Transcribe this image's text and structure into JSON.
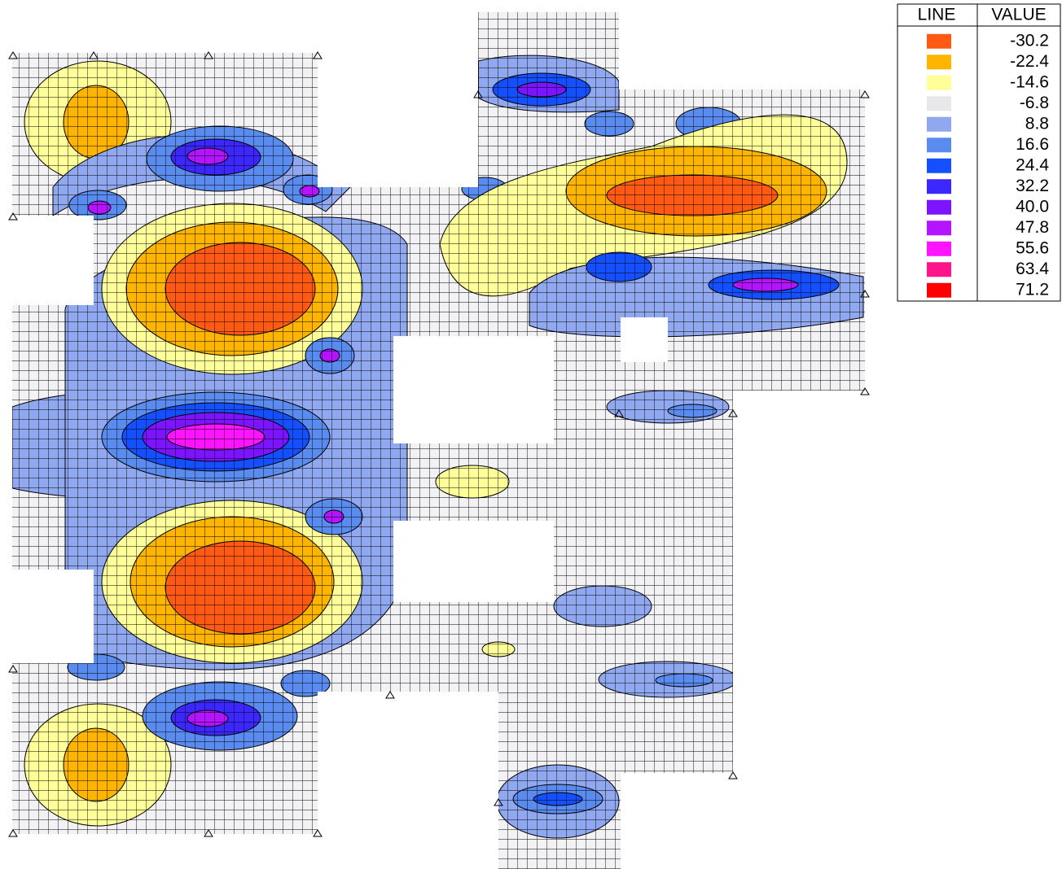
{
  "legend": {
    "header": {
      "line": "LINE",
      "value": "VALUE"
    },
    "rows": [
      {
        "color": "#ff5a14",
        "value": "-30.2"
      },
      {
        "color": "#ffb400",
        "value": "-22.4"
      },
      {
        "color": "#ffff99",
        "value": "-14.6"
      },
      {
        "color": "#e8e8ea",
        "value": "-6.8"
      },
      {
        "color": "#8fa8ef",
        "value": "8.8"
      },
      {
        "color": "#5a8cf0",
        "value": "16.6"
      },
      {
        "color": "#1450ff",
        "value": "24.4"
      },
      {
        "color": "#3c28ff",
        "value": "32.2"
      },
      {
        "color": "#7d14ff",
        "value": "40.0"
      },
      {
        "color": "#b414ff",
        "value": "47.8"
      },
      {
        "color": "#ff14ff",
        "value": "55.6"
      },
      {
        "color": "#ff148c",
        "value": "63.4"
      },
      {
        "color": "#ff0000",
        "value": "71.2"
      }
    ]
  }
}
